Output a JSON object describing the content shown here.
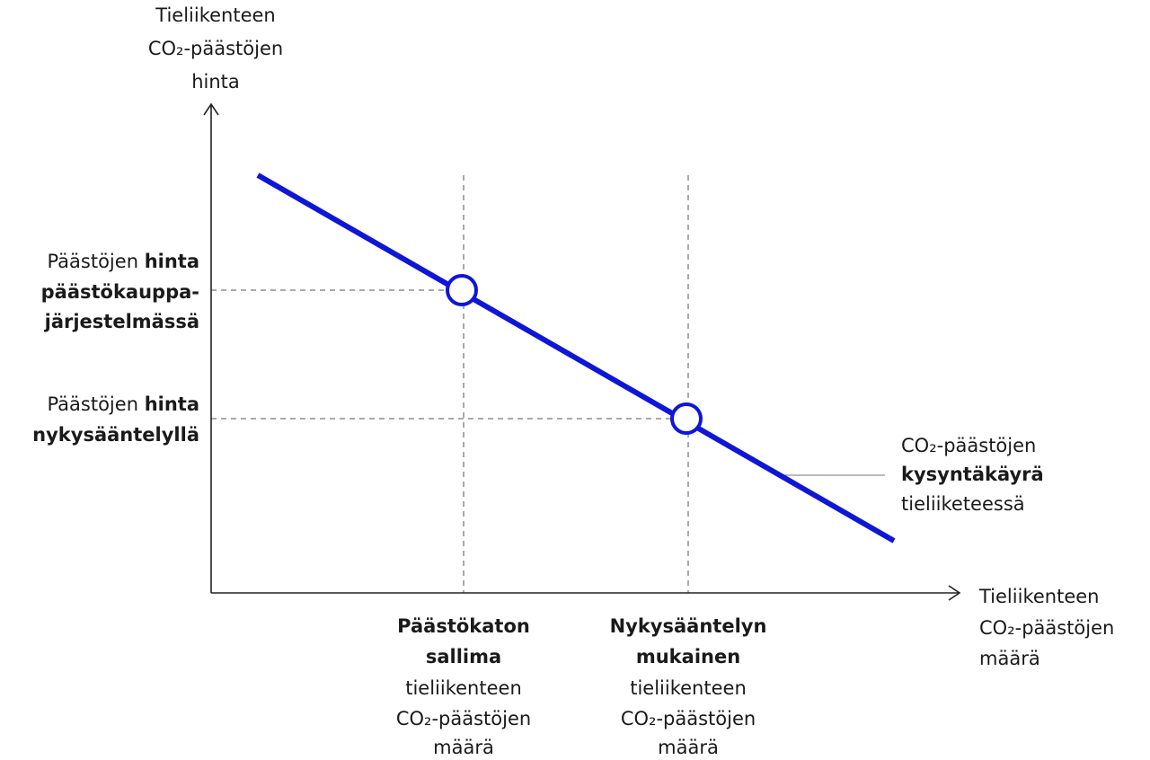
{
  "y_axis_label": {
    "lines": [
      [
        {
          "text": "Tieliikenteen"
        }
      ],
      [
        {
          "text": "CO₂-päästöjen"
        }
      ],
      [
        {
          "text": "hinta"
        }
      ]
    ]
  },
  "x_axis_label": {
    "lines": [
      [
        {
          "text": "Tieliikenteen"
        }
      ],
      [
        {
          "text": "CO₂-päästöjen"
        }
      ],
      [
        {
          "text": "määrä"
        }
      ]
    ]
  },
  "price_ets": {
    "lines": [
      [
        {
          "text": "Päästöjen"
        },
        {
          "text": "hinta",
          "bold": true
        }
      ],
      [
        {
          "text": "päästökauppa-",
          "bold": true
        }
      ],
      [
        {
          "text": "järjestelmässä",
          "bold": true
        }
      ]
    ]
  },
  "price_current": {
    "lines": [
      [
        {
          "text": "Päästöjen"
        },
        {
          "text": "hinta",
          "bold": true
        }
      ],
      [
        {
          "text": "nykysääntelyllä",
          "bold": true
        }
      ]
    ]
  },
  "demand_curve": {
    "lines": [
      [
        {
          "text": "CO₂-päästöjen"
        }
      ],
      [
        {
          "text": "kysyntäkäyrä",
          "bold": true
        }
      ],
      [
        {
          "text": "tieliiketeessä"
        }
      ]
    ]
  },
  "quantity_cap": {
    "lines": [
      [
        {
          "text": "Päästökaton",
          "bold": true
        }
      ],
      [
        {
          "text": "sallima",
          "bold": true
        }
      ],
      [
        {
          "text": "tieliikenteen"
        }
      ],
      [
        {
          "text": "CO₂-päästöjen"
        }
      ],
      [
        {
          "text": "määrä"
        }
      ]
    ]
  },
  "quantity_current": {
    "lines": [
      [
        {
          "text": "Nykysääntelyn",
          "bold": true
        }
      ],
      [
        {
          "text": "mukainen",
          "bold": true
        }
      ],
      [
        {
          "text": "tieliikenteen"
        }
      ],
      [
        {
          "text": "CO₂-päästöjen"
        }
      ],
      [
        {
          "text": "määrä"
        }
      ]
    ]
  }
}
